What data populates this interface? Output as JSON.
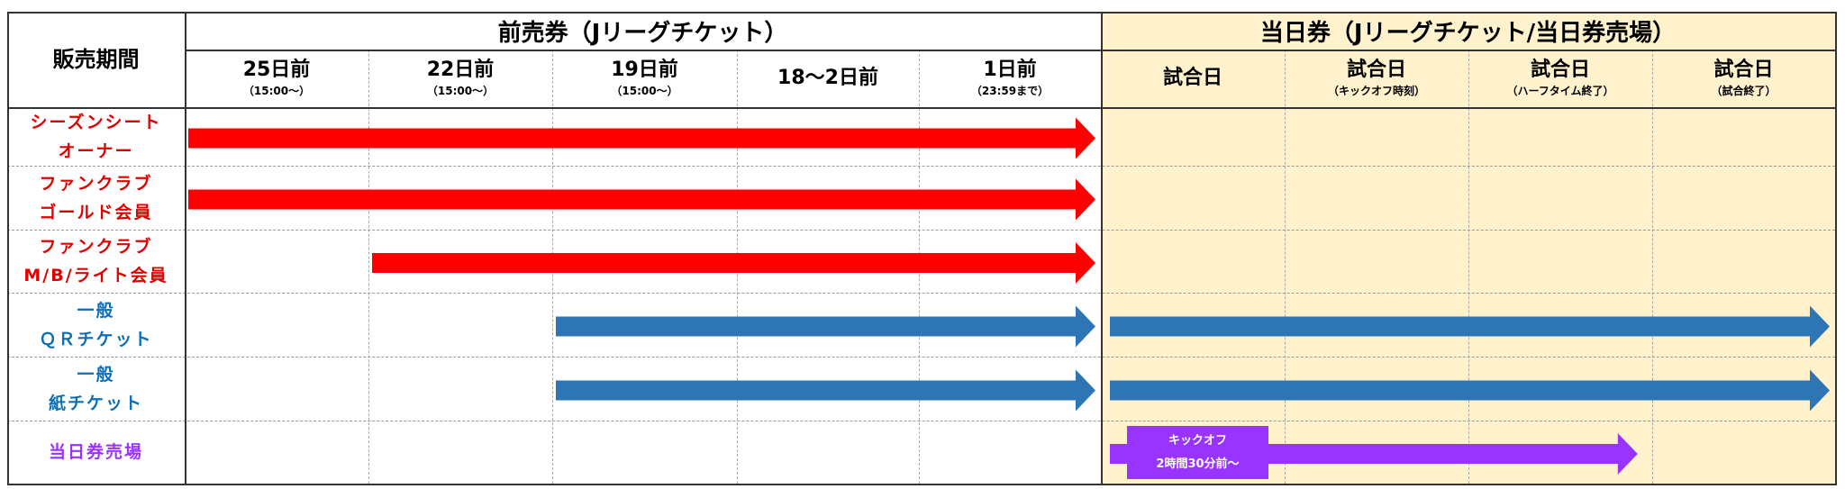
{
  "header": {
    "corner_label": "販売期間",
    "advance_group": "前売券（Jリーグチケット）",
    "sameday_group": "当日券（Jリーグチケット/当日券売場）",
    "columns": [
      {
        "main": "25日前",
        "sub": "（15:00～）"
      },
      {
        "main": "22日前",
        "sub": "（15:00～）"
      },
      {
        "main": "19日前",
        "sub": "（15:00～）"
      },
      {
        "main": "18～2日前",
        "sub": ""
      },
      {
        "main": "1日前",
        "sub": "（23:59まで）"
      },
      {
        "main": "試合日",
        "sub": ""
      },
      {
        "main": "試合日",
        "sub": "（キックオフ時刻）"
      },
      {
        "main": "試合日",
        "sub": "（ハーフタイム終了）"
      },
      {
        "main": "試合日",
        "sub": "（試合終了）"
      }
    ]
  },
  "rows": [
    {
      "line1": "シーズンシート",
      "line2": "オーナー",
      "color": "#e00000"
    },
    {
      "line1": "ファンクラブ",
      "line2": "ゴールド会員",
      "color": "#e00000"
    },
    {
      "line1": "ファンクラブ",
      "line2": "M/B/ライト会員",
      "color": "#e00000"
    },
    {
      "line1": "一般",
      "line2": "ＱＲチケット",
      "color": "#0b6fb8"
    },
    {
      "line1": "一般",
      "line2": "紙チケット",
      "color": "#0b6fb8"
    },
    {
      "line1": "当日券売場",
      "line2": "",
      "color": "#9933ff"
    }
  ],
  "periods": [
    {
      "row": 0,
      "from_col": 0,
      "to_col": 5,
      "color": "#ff0000"
    },
    {
      "row": 1,
      "from_col": 0,
      "to_col": 5,
      "color": "#ff0000"
    },
    {
      "row": 2,
      "from_col": 1,
      "to_col": 5,
      "color": "#ff0000"
    },
    {
      "row": 3,
      "from_col": 2,
      "to_col": 5,
      "color": "#2e75b6"
    },
    {
      "row": 3,
      "from_col": 5,
      "to_col": 9,
      "color": "#2e75b6"
    },
    {
      "row": 4,
      "from_col": 2,
      "to_col": 5,
      "color": "#2e75b6"
    },
    {
      "row": 4,
      "from_col": 5,
      "to_col": 9,
      "color": "#2e75b6"
    },
    {
      "row": 5,
      "from_col": 5,
      "to_col": 7.95,
      "color": "#9933ff"
    }
  ],
  "callout": {
    "line1": "キックオフ",
    "line2": "2時間30分前～",
    "color": "#9933ff"
  },
  "colors": {
    "sameday_bg": "#fff2cc",
    "grid": "#333333"
  }
}
